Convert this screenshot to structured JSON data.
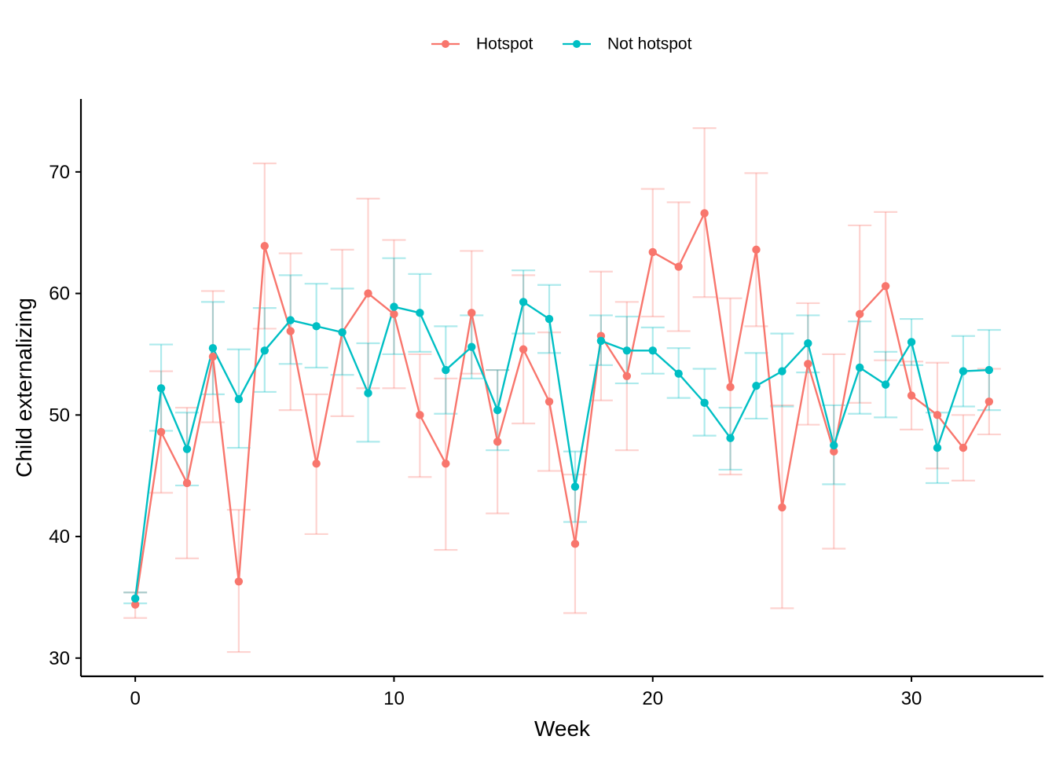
{
  "chart_data": {
    "type": "line",
    "xlabel": "Week",
    "ylabel": "Child externalizing",
    "xlim": [
      -2.1,
      35.1
    ],
    "ylim": [
      28.5,
      76.0
    ],
    "xticks": [
      0,
      10,
      20,
      30
    ],
    "yticks": [
      30,
      40,
      50,
      60,
      70
    ],
    "legend_position": "top",
    "grid": false,
    "error_bars": true,
    "x": [
      0,
      1,
      2,
      3,
      4,
      5,
      6,
      7,
      8,
      9,
      10,
      11,
      12,
      13,
      14,
      15,
      16,
      17,
      18,
      19,
      20,
      21,
      22,
      23,
      24,
      25,
      26,
      27,
      28,
      29,
      30,
      31,
      32,
      33
    ],
    "series": [
      {
        "name": "Hotspot",
        "color": "#F8766D",
        "values": [
          34.4,
          48.6,
          44.4,
          54.8,
          36.3,
          63.9,
          56.9,
          46.0,
          56.8,
          60.0,
          58.3,
          50.0,
          46.0,
          58.4,
          47.8,
          55.4,
          51.1,
          39.4,
          56.5,
          53.2,
          63.4,
          62.2,
          66.6,
          52.3,
          63.6,
          42.4,
          54.2,
          47.0,
          58.3,
          60.6,
          51.6,
          50.0,
          47.3,
          51.1
        ],
        "lower": [
          33.3,
          43.6,
          38.2,
          49.4,
          30.5,
          57.1,
          50.4,
          40.2,
          49.9,
          52.2,
          52.2,
          44.9,
          38.9,
          53.4,
          41.9,
          49.3,
          45.4,
          33.7,
          51.2,
          47.1,
          58.1,
          56.9,
          59.7,
          45.1,
          57.3,
          34.1,
          49.2,
          39.0,
          51.0,
          54.5,
          48.8,
          45.6,
          44.6,
          48.4
        ],
        "upper": [
          35.4,
          53.6,
          50.6,
          60.2,
          42.2,
          70.7,
          63.3,
          51.7,
          63.6,
          67.8,
          64.4,
          55.0,
          53.0,
          63.5,
          53.7,
          61.5,
          56.8,
          45.1,
          61.8,
          59.3,
          68.6,
          67.5,
          73.6,
          59.6,
          69.9,
          50.8,
          59.2,
          55.0,
          65.6,
          66.7,
          54.4,
          54.3,
          50.0,
          53.8
        ]
      },
      {
        "name": "Not hotspot",
        "color": "#00BFC4",
        "values": [
          34.9,
          52.2,
          47.2,
          55.5,
          51.3,
          55.3,
          57.8,
          57.3,
          56.8,
          51.8,
          58.9,
          58.4,
          53.7,
          55.6,
          50.4,
          59.3,
          57.9,
          44.1,
          56.1,
          55.3,
          55.3,
          53.4,
          51.0,
          48.1,
          52.4,
          53.6,
          55.9,
          47.5,
          53.9,
          52.5,
          56.0,
          47.3,
          53.6,
          53.7
        ],
        "lower": [
          34.5,
          48.7,
          44.2,
          51.7,
          47.3,
          51.9,
          54.2,
          53.9,
          53.3,
          47.8,
          55.0,
          55.2,
          50.1,
          53.0,
          47.1,
          56.7,
          55.1,
          41.2,
          54.1,
          52.6,
          53.4,
          51.4,
          48.3,
          45.5,
          49.7,
          50.7,
          53.5,
          44.3,
          50.1,
          49.8,
          54.1,
          44.4,
          50.7,
          50.4
        ],
        "upper": [
          35.4,
          55.8,
          50.2,
          59.3,
          55.4,
          58.8,
          61.5,
          60.8,
          60.4,
          55.9,
          62.9,
          61.6,
          57.3,
          58.2,
          53.7,
          61.9,
          60.7,
          47.0,
          58.2,
          58.1,
          57.2,
          55.5,
          53.8,
          50.6,
          55.1,
          56.7,
          58.2,
          50.8,
          57.7,
          55.2,
          57.9,
          50.2,
          56.5,
          57.0
        ]
      }
    ]
  }
}
